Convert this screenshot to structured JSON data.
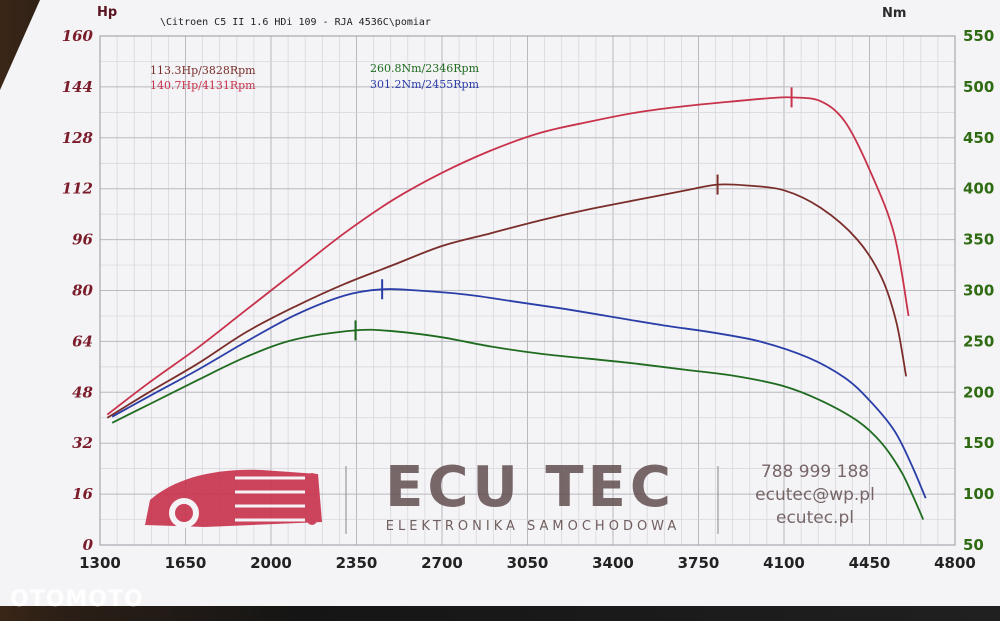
{
  "watermark": "OTOMOTO",
  "chart_data": {
    "type": "line",
    "title": "\\Citroen C5 II 1.6 HDi 109 - RJA 4536C\\pomiar",
    "left_axis_unit": "Hp",
    "right_axis_unit": "Nm",
    "x_ticks": [
      1300,
      1650,
      2000,
      2350,
      2700,
      3050,
      3400,
      3750,
      4100,
      4450,
      4800
    ],
    "x_tick_labels": [
      "1300",
      "1650",
      "2000",
      "2350",
      "2700",
      "3050",
      "3400",
      "3750",
      "4100",
      "4450",
      "4800"
    ],
    "xlim": [
      1300,
      4800
    ],
    "hp_ticks": [
      0,
      16,
      32,
      48,
      64,
      80,
      96,
      112,
      128,
      144,
      160
    ],
    "hp_tick_labels": [
      "0",
      "16",
      "32",
      "48",
      "64",
      "80",
      "96",
      "112",
      "128",
      "144",
      "160"
    ],
    "hp_lim": [
      0,
      160
    ],
    "nm_ticks": [
      50,
      100,
      150,
      200,
      250,
      300,
      350,
      400,
      450,
      500,
      550
    ],
    "nm_tick_labels": [
      "50",
      "100",
      "150",
      "200",
      "250",
      "300",
      "350",
      "400",
      "450",
      "500",
      "550"
    ],
    "nm_lim": [
      50,
      550
    ],
    "grid": true,
    "annotations": {
      "hp_before": "113.3Hp/3828Rpm",
      "hp_after": "140.7Hp/4131Rpm",
      "nm_before": "260.8Nm/2346Rpm",
      "nm_after": "301.2Nm/2455Rpm"
    },
    "colors": {
      "hp_before": "#7a2e2a",
      "hp_after": "#c8324b",
      "nm_before": "#1f6b1f",
      "nm_after": "#2a3ea8",
      "hp_axis": "#7a1c2a",
      "nm_axis": "#2f6b12"
    },
    "series": [
      {
        "axis": "hp",
        "color": "#7a2e2a",
        "peak": [
          3828,
          113.3
        ],
        "x": [
          1330,
          1500,
          1700,
          1900,
          2100,
          2300,
          2500,
          2700,
          2900,
          3100,
          3300,
          3500,
          3700,
          3828,
          3950,
          4100,
          4250,
          4400,
          4500,
          4560,
          4600
        ],
        "y": [
          40,
          48,
          57,
          67,
          75,
          82,
          88,
          94,
          98,
          102,
          105.5,
          108.5,
          111.5,
          113.3,
          113,
          111.5,
          106,
          96,
          84,
          70,
          53
        ]
      },
      {
        "axis": "hp",
        "color": "#c8324b",
        "peak": [
          4131,
          140.7
        ],
        "x": [
          1330,
          1500,
          1700,
          1900,
          2100,
          2300,
          2500,
          2700,
          2900,
          3100,
          3300,
          3500,
          3700,
          3900,
          4050,
          4131,
          4250,
          4350,
          4450,
          4550,
          4610
        ],
        "y": [
          41,
          51,
          62,
          74,
          86,
          98,
          108.5,
          117,
          124,
          129.5,
          133,
          136,
          138,
          139.5,
          140.5,
          140.7,
          139.5,
          133,
          118,
          98,
          72
        ]
      },
      {
        "axis": "nm",
        "color": "#1f6b1f",
        "peak": [
          2346,
          260.8
        ],
        "x": [
          1350,
          1500,
          1700,
          1900,
          2100,
          2346,
          2500,
          2700,
          2900,
          3100,
          3300,
          3500,
          3700,
          3900,
          4100,
          4250,
          4400,
          4500,
          4580,
          4630,
          4670
        ],
        "y": [
          170,
          188,
          212,
          235,
          252,
          260.8,
          260,
          254,
          245,
          238,
          233,
          228,
          222,
          216,
          206,
          192,
          172,
          150,
          122,
          97,
          75
        ]
      },
      {
        "axis": "nm",
        "color": "#2a3ea8",
        "peak": [
          2455,
          301.2
        ],
        "x": [
          1350,
          1500,
          1700,
          1900,
          2100,
          2300,
          2455,
          2600,
          2800,
          3000,
          3200,
          3400,
          3600,
          3800,
          4000,
          4200,
          4350,
          4450,
          4550,
          4620,
          4680
        ],
        "y": [
          176,
          196,
          222,
          250,
          276,
          295,
          301.2,
          300,
          296,
          289,
          282,
          274,
          266,
          259,
          250,
          234,
          214,
          192,
          163,
          130,
          96
        ]
      }
    ]
  },
  "logo": {
    "brand": "ECU TEC",
    "tagline": "ELEKTRONIKA SAMOCHODOWA",
    "phone": "788 999 188",
    "email": "ecutec@wp.pl",
    "web": "ecutec.pl",
    "brand_color": "#5a4545",
    "accent_color": "#c8324b"
  }
}
